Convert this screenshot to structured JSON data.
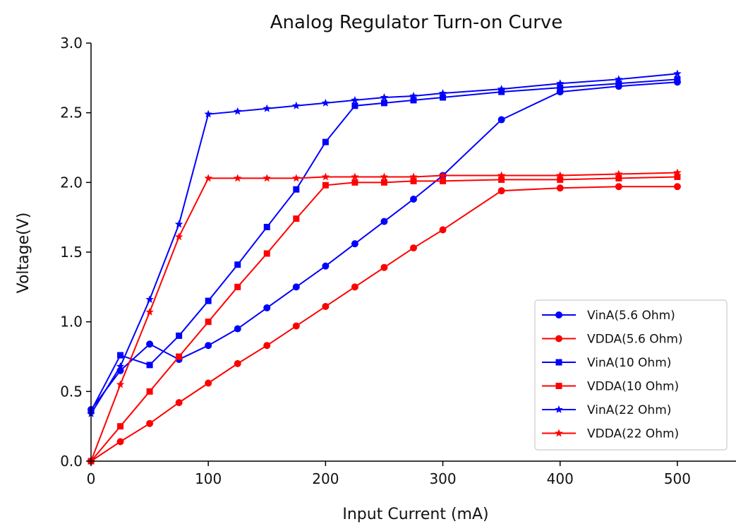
{
  "chart_data": {
    "type": "line",
    "title": "Analog Regulator Turn-on Curve",
    "xlabel": "Input Current (mA)",
    "ylabel": "Voltage(V)",
    "xlim": [
      0,
      550
    ],
    "ylim": [
      0,
      3.0
    ],
    "xticks": [
      0,
      100,
      200,
      300,
      400,
      500
    ],
    "yticks": [
      0.0,
      0.5,
      1.0,
      1.5,
      2.0,
      2.5,
      3.0
    ],
    "xtick_labels": [
      "0",
      "100",
      "200",
      "300",
      "400",
      "500"
    ],
    "ytick_labels": [
      "0.0",
      "0.5",
      "1.0",
      "1.5",
      "2.0",
      "2.5",
      "3.0"
    ],
    "grid": false,
    "legend_position": "lower-right",
    "series": [
      {
        "name": "VinA(5.6 Ohm)",
        "color": "#0000ff",
        "marker": "circle",
        "x": [
          0,
          25,
          50,
          75,
          100,
          125,
          150,
          175,
          200,
          225,
          250,
          275,
          300,
          350,
          400,
          450,
          500
        ],
        "y": [
          0.37,
          0.65,
          0.84,
          0.73,
          0.83,
          0.95,
          1.1,
          1.25,
          1.4,
          1.56,
          1.72,
          1.88,
          2.05,
          2.45,
          2.65,
          2.69,
          2.72
        ]
      },
      {
        "name": "VDDA(5.6 Ohm)",
        "color": "#ff0000",
        "marker": "circle",
        "x": [
          0,
          25,
          50,
          75,
          100,
          125,
          150,
          175,
          200,
          225,
          250,
          275,
          300,
          350,
          400,
          450,
          500
        ],
        "y": [
          0.0,
          0.14,
          0.27,
          0.42,
          0.56,
          0.7,
          0.83,
          0.97,
          1.11,
          1.25,
          1.39,
          1.53,
          1.66,
          1.94,
          1.96,
          1.97,
          1.97
        ]
      },
      {
        "name": "VinA(10 Ohm)",
        "color": "#0000ff",
        "marker": "square",
        "x": [
          0,
          25,
          50,
          75,
          100,
          125,
          150,
          175,
          200,
          225,
          250,
          275,
          300,
          350,
          400,
          450,
          500
        ],
        "y": [
          0.36,
          0.76,
          0.69,
          0.9,
          1.15,
          1.41,
          1.68,
          1.95,
          2.29,
          2.55,
          2.57,
          2.59,
          2.61,
          2.65,
          2.68,
          2.71,
          2.74
        ]
      },
      {
        "name": "VDDA(10 Ohm)",
        "color": "#ff0000",
        "marker": "square",
        "x": [
          0,
          25,
          50,
          75,
          100,
          125,
          150,
          175,
          200,
          225,
          250,
          275,
          300,
          350,
          400,
          450,
          500
        ],
        "y": [
          0.0,
          0.25,
          0.5,
          0.75,
          1.0,
          1.25,
          1.49,
          1.74,
          1.98,
          2.0,
          2.0,
          2.01,
          2.01,
          2.02,
          2.02,
          2.03,
          2.04
        ]
      },
      {
        "name": "VinA(22 Ohm)",
        "color": "#0000ff",
        "marker": "star",
        "x": [
          0,
          25,
          50,
          75,
          100,
          125,
          150,
          175,
          200,
          225,
          250,
          275,
          300,
          350,
          400,
          450,
          500
        ],
        "y": [
          0.34,
          0.68,
          1.16,
          1.7,
          2.49,
          2.51,
          2.53,
          2.55,
          2.57,
          2.59,
          2.61,
          2.62,
          2.64,
          2.67,
          2.71,
          2.74,
          2.78
        ]
      },
      {
        "name": "VDDA(22 Ohm)",
        "color": "#ff0000",
        "marker": "star",
        "x": [
          0,
          25,
          50,
          75,
          100,
          125,
          150,
          175,
          200,
          225,
          250,
          275,
          300,
          350,
          400,
          450,
          500
        ],
        "y": [
          0.0,
          0.55,
          1.07,
          1.61,
          2.03,
          2.03,
          2.03,
          2.03,
          2.04,
          2.04,
          2.04,
          2.04,
          2.05,
          2.05,
          2.05,
          2.06,
          2.07
        ]
      }
    ]
  }
}
